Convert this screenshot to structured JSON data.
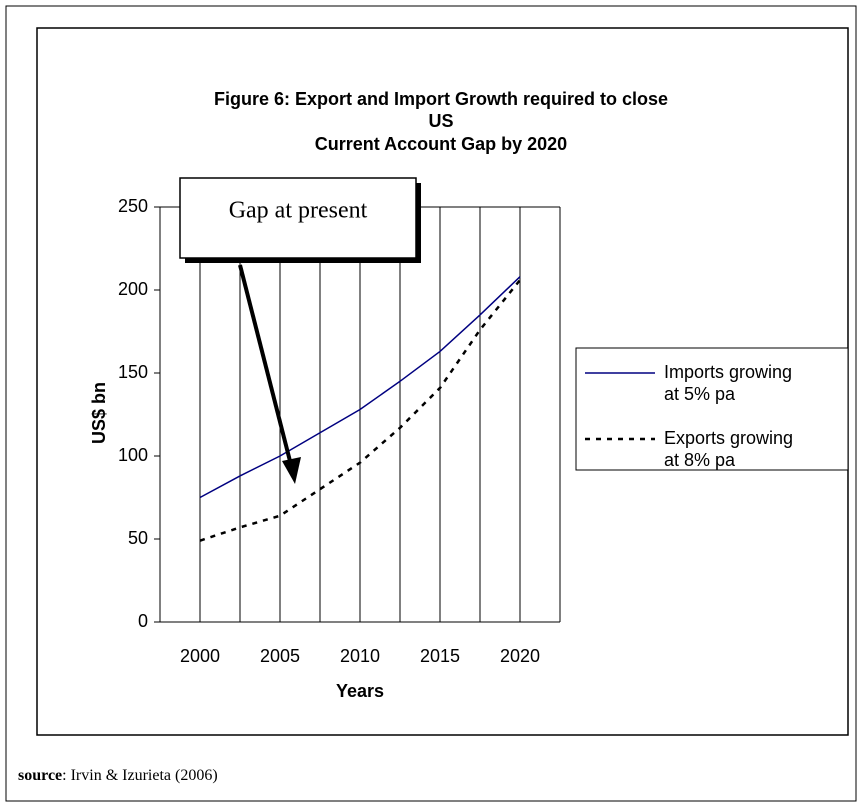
{
  "chart_data": {
    "type": "line",
    "title": [
      "Figure 6: Export and Import Growth required to close",
      "US",
      "Current Account Gap by 2020"
    ],
    "x_label": "Years",
    "y_label": "US$ bn",
    "x": [
      2000,
      2002.5,
      2005,
      2007.5,
      2010,
      2012.5,
      2015,
      2017.5,
      2020
    ],
    "series": [
      {
        "name": [
          "Imports growing",
          "at 5% pa"
        ],
        "color": "#000080",
        "dash": "solid",
        "values": [
          75,
          88,
          100,
          114,
          128,
          145,
          163,
          185,
          208
        ]
      },
      {
        "name": [
          "Exports growing",
          "at 8% pa"
        ],
        "color": "#000000",
        "dash": "dotted",
        "values": [
          49,
          57,
          64,
          80,
          96,
          117,
          141,
          176,
          206
        ]
      }
    ],
    "xlim": [
      1997.5,
      2022.5
    ],
    "xticks": [
      2000,
      2005,
      2010,
      2015,
      2020
    ],
    "ylim": [
      0,
      250
    ],
    "yticks": [
      0,
      50,
      100,
      150,
      200,
      250
    ],
    "grid": "x",
    "legend": "right",
    "annotation": "Gap at present",
    "source_label": "source",
    "source_text": ": Irvin & Izurieta (2006)"
  }
}
